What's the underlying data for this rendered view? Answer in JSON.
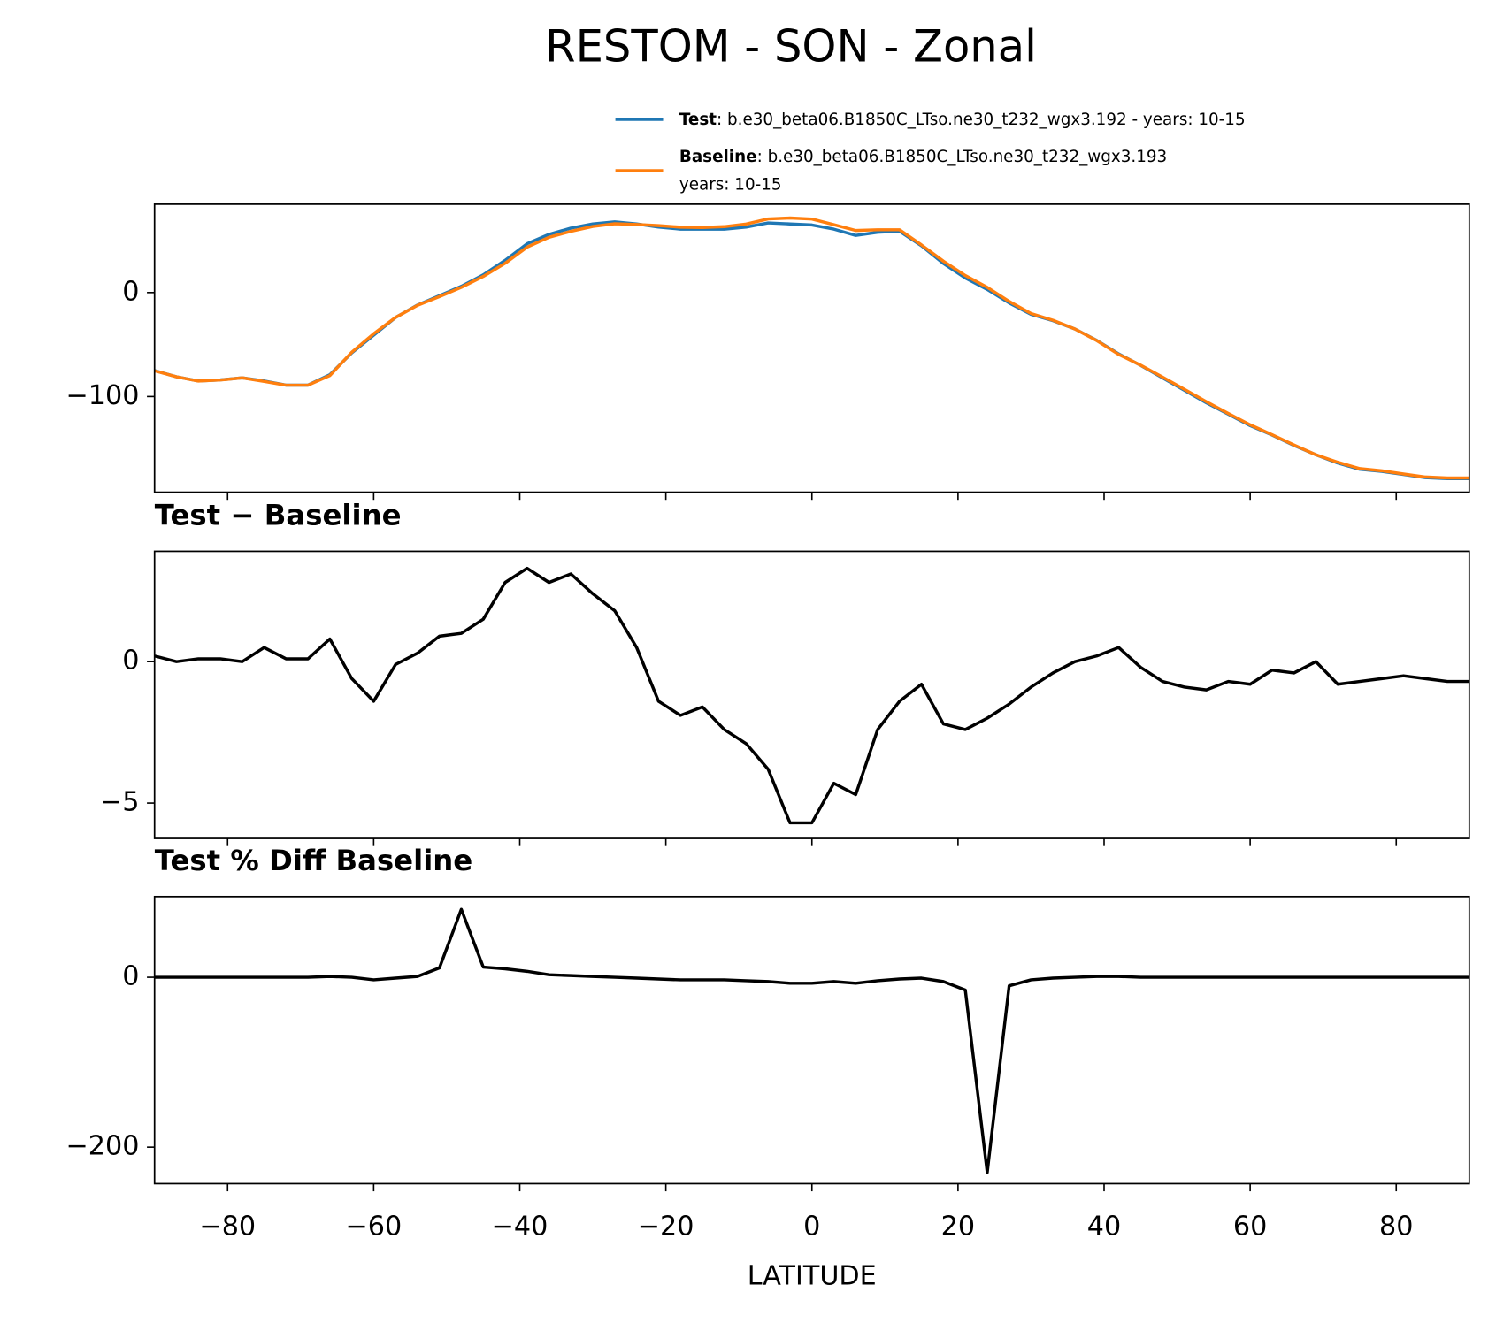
{
  "title": "RESTOM - SON - Zonal",
  "chart_data": [
    {
      "type": "line",
      "x": [
        -90,
        -87,
        -84,
        -81,
        -78,
        -75,
        -72,
        -69,
        -66,
        -63,
        -60,
        -57,
        -54,
        -51,
        -48,
        -45,
        -42,
        -39,
        -36,
        -33,
        -30,
        -27,
        -24,
        -21,
        -18,
        -15,
        -12,
        -9,
        -6,
        -3,
        0,
        3,
        6,
        9,
        12,
        15,
        18,
        21,
        24,
        27,
        30,
        33,
        36,
        39,
        42,
        45,
        48,
        51,
        54,
        57,
        60,
        63,
        66,
        69,
        72,
        75,
        78,
        81,
        84,
        87,
        90
      ],
      "series": [
        {
          "name": "Test",
          "description": [
            ": b.e30_beta06.B1850C_LTso.ne30_t232_wgx3.192 - years: 10-15"
          ],
          "color": "#1f77b4",
          "values": [
            -75,
            -81,
            -85,
            -84,
            -82,
            -85,
            -89,
            -89,
            -79,
            -58,
            -41,
            -24,
            -12,
            -3,
            6,
            17,
            31,
            47,
            56,
            62,
            66,
            68,
            66,
            63,
            61,
            61,
            61,
            63,
            67,
            66,
            65,
            61,
            55,
            58,
            59,
            45,
            28,
            14,
            3,
            -10,
            -21,
            -27,
            -35,
            -46,
            -59,
            -70,
            -82,
            -94,
            -106,
            -117,
            -128,
            -137,
            -147,
            -156,
            -164,
            -170,
            -172,
            -175,
            -178,
            -179,
            -179
          ]
        },
        {
          "name": "Baseline",
          "description": [
            ": b.e30_beta06.B1850C_LTso.ne30_t232_wgx3.193",
            "years: 10-15"
          ],
          "color": "#ff7f0e",
          "values": [
            -75.2,
            -81,
            -85.1,
            -84.1,
            -82,
            -85.5,
            -89.1,
            -89.1,
            -79.8,
            -57.4,
            -39.6,
            -23.9,
            -12.3,
            -3.9,
            5,
            15.5,
            28.2,
            43.7,
            53.2,
            58.9,
            63.6,
            66.2,
            65.5,
            64.4,
            62.9,
            62.6,
            63.4,
            65.9,
            70.8,
            71.7,
            70.7,
            65.3,
            59.7,
            60.4,
            60.4,
            45.8,
            30.2,
            16.4,
            5,
            -8.5,
            -20.1,
            -26.6,
            -35,
            -46.2,
            -59.5,
            -69.8,
            -81.3,
            -93.1,
            -105,
            -116.3,
            -127.2,
            -136.7,
            -146.6,
            -156,
            -163.2,
            -169.3,
            -171.4,
            -174.5,
            -177.4,
            -178.3,
            -178.3
          ]
        }
      ],
      "legend": "upper right",
      "xlim": [
        -90,
        90
      ],
      "xticks": [
        -80,
        -60,
        -40,
        -20,
        0,
        20,
        40,
        60,
        80
      ],
      "show_xticklabels": false,
      "ylim": [
        -192,
        85
      ],
      "yticks": [
        {
          "value": -100,
          "label": "−100"
        },
        0
      ]
    },
    {
      "type": "line",
      "title": "Test − Baseline",
      "x": [
        -90,
        -87,
        -84,
        -81,
        -78,
        -75,
        -72,
        -69,
        -66,
        -63,
        -60,
        -57,
        -54,
        -51,
        -48,
        -45,
        -42,
        -39,
        -36,
        -33,
        -30,
        -27,
        -24,
        -21,
        -18,
        -15,
        -12,
        -9,
        -6,
        -3,
        0,
        3,
        6,
        9,
        12,
        15,
        18,
        21,
        24,
        27,
        30,
        33,
        36,
        39,
        42,
        45,
        48,
        51,
        54,
        57,
        60,
        63,
        66,
        69,
        72,
        75,
        78,
        81,
        84,
        87,
        90
      ],
      "series": [
        {
          "color": "#000000",
          "values": [
            0.2,
            0,
            0.1,
            0.1,
            0,
            0.5,
            0.1,
            0.1,
            0.8,
            -0.6,
            -1.4,
            -0.1,
            0.3,
            0.9,
            1,
            1.5,
            2.8,
            3.3,
            2.8,
            3.1,
            2.4,
            1.8,
            0.5,
            -1.4,
            -1.9,
            -1.6,
            -2.4,
            -2.9,
            -3.8,
            -5.7,
            -5.7,
            -4.3,
            -4.7,
            -2.4,
            -1.4,
            -0.8,
            -2.2,
            -2.4,
            -2,
            -1.5,
            -0.9,
            -0.4,
            0,
            0.2,
            0.5,
            -0.2,
            -0.7,
            -0.9,
            -1,
            -0.7,
            -0.8,
            -0.3,
            -0.4,
            0,
            -0.8,
            -0.7,
            -0.6,
            -0.5,
            -0.6,
            -0.7,
            -0.7
          ]
        }
      ],
      "xlim": [
        -90,
        90
      ],
      "xticks": [
        -80,
        -60,
        -40,
        -20,
        0,
        20,
        40,
        60,
        80
      ],
      "show_xticklabels": false,
      "ylim": [
        -6.25,
        3.9
      ],
      "yticks": [
        {
          "value": -5,
          "label": "−5"
        },
        0
      ]
    },
    {
      "type": "line",
      "title": "Test % Diff Baseline",
      "xlabel": "LATITUDE",
      "x": [
        -90,
        -87,
        -84,
        -81,
        -78,
        -75,
        -72,
        -69,
        -66,
        -63,
        -60,
        -57,
        -54,
        -51,
        -48,
        -45,
        -42,
        -39,
        -36,
        -33,
        -30,
        -27,
        -24,
        -21,
        -18,
        -15,
        -12,
        -9,
        -6,
        -3,
        0,
        3,
        6,
        9,
        12,
        15,
        18,
        21,
        24,
        27,
        30,
        33,
        36,
        39,
        42,
        45,
        48,
        51,
        54,
        57,
        60,
        63,
        66,
        69,
        72,
        75,
        78,
        81,
        84,
        87,
        90
      ],
      "series": [
        {
          "color": "#000000",
          "values": [
            0,
            0,
            0,
            0,
            0,
            0,
            0,
            0,
            1,
            0,
            -3,
            -1,
            1,
            11,
            80,
            12,
            10,
            7,
            3,
            2,
            1,
            0,
            -1,
            -2,
            -3,
            -3,
            -3,
            -4,
            -5,
            -7,
            -7,
            -5,
            -7,
            -4,
            -2,
            -1,
            -5,
            -15,
            -230,
            -10,
            -3,
            -1,
            0,
            1,
            1,
            0,
            0,
            0,
            0,
            0,
            0,
            0,
            0,
            0,
            0,
            0,
            0,
            0,
            0,
            0,
            0
          ]
        }
      ],
      "xlim": [
        -90,
        90
      ],
      "xticks": [
        {
          "value": -80,
          "label": "−80"
        },
        {
          "value": -60,
          "label": "−60"
        },
        {
          "value": -40,
          "label": "−40"
        },
        {
          "value": -20,
          "label": "−20"
        },
        0,
        20,
        40,
        60,
        80
      ],
      "show_xticklabels": true,
      "ylim": [
        -243,
        95
      ],
      "yticks": [
        {
          "value": -200,
          "label": "−200"
        },
        0
      ]
    }
  ]
}
